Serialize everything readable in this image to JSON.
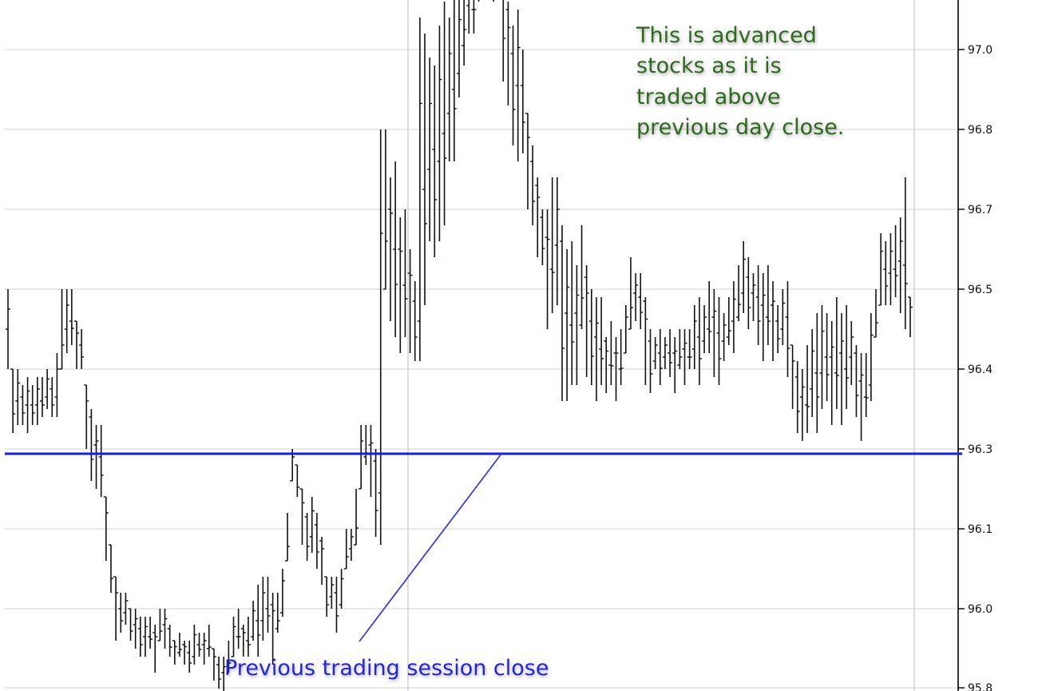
{
  "chart_data": {
    "type": "ohlc",
    "y_axis": {
      "position": "right",
      "ticks": [
        "97.0",
        "96.8",
        "96.7",
        "96.5",
        "96.4",
        "96.3",
        "96.1",
        "96.0",
        "95.8"
      ]
    },
    "grid": true,
    "vertical_markers": [
      "session-boundary",
      "chart-end"
    ],
    "reference_line": {
      "value": 96.3,
      "color": "#1a1aee"
    },
    "annotations": {
      "advanced": [
        "This is advanced",
        "stocks as it is",
        "traded above",
        "previous day close."
      ],
      "prev_close": "Previous trading session close"
    },
    "bars_low_high": [
      [
        96.4,
        96.5
      ],
      [
        96.32,
        96.4
      ],
      [
        96.33,
        96.4
      ],
      [
        96.33,
        96.38
      ],
      [
        96.32,
        96.39
      ],
      [
        96.33,
        96.38
      ],
      [
        96.33,
        96.39
      ],
      [
        96.34,
        96.39
      ],
      [
        96.35,
        96.4
      ],
      [
        96.34,
        96.39
      ],
      [
        96.34,
        96.42
      ],
      [
        96.4,
        96.5
      ],
      [
        96.42,
        96.5
      ],
      [
        96.43,
        96.5
      ],
      [
        96.4,
        96.46
      ],
      [
        96.4,
        96.45
      ],
      [
        96.3,
        96.38
      ],
      [
        96.26,
        96.35
      ],
      [
        96.25,
        96.33
      ],
      [
        96.24,
        96.33
      ],
      [
        96.16,
        96.24
      ],
      [
        96.12,
        96.18
      ],
      [
        96.06,
        96.14
      ],
      [
        96.07,
        96.12
      ],
      [
        96.08,
        96.12
      ],
      [
        96.06,
        96.1
      ],
      [
        96.05,
        96.1
      ],
      [
        96.04,
        96.09
      ],
      [
        96.04,
        96.09
      ],
      [
        96.05,
        96.09
      ],
      [
        96.02,
        96.08
      ],
      [
        96.06,
        96.1
      ],
      [
        96.05,
        96.1
      ],
      [
        96.04,
        96.08
      ],
      [
        96.03,
        96.06
      ],
      [
        96.04,
        96.07
      ],
      [
        96.03,
        96.06
      ],
      [
        96.02,
        96.06
      ],
      [
        96.03,
        96.08
      ],
      [
        96.04,
        96.07
      ],
      [
        96.03,
        96.07
      ],
      [
        96.04,
        96.08
      ],
      [
        96.01,
        96.05
      ],
      [
        96.0,
        96.04
      ],
      [
        95.99,
        96.04
      ],
      [
        96.02,
        96.06
      ],
      [
        96.04,
        96.09
      ],
      [
        96.05,
        96.1
      ],
      [
        96.04,
        96.08
      ],
      [
        96.04,
        96.09
      ],
      [
        96.06,
        96.11
      ],
      [
        96.04,
        96.13
      ],
      [
        96.06,
        96.14
      ],
      [
        96.07,
        96.14
      ],
      [
        96.03,
        96.12
      ],
      [
        96.07,
        96.12
      ],
      [
        96.09,
        96.15
      ],
      [
        96.16,
        96.22
      ],
      [
        96.26,
        96.3
      ],
      [
        96.24,
        96.28
      ],
      [
        96.18,
        96.25
      ],
      [
        96.16,
        96.22
      ],
      [
        96.17,
        96.24
      ],
      [
        96.15,
        96.22
      ],
      [
        96.13,
        96.19
      ],
      [
        96.09,
        96.14
      ],
      [
        96.1,
        96.14
      ],
      [
        96.07,
        96.14
      ],
      [
        96.1,
        96.15
      ],
      [
        96.15,
        96.2
      ],
      [
        96.16,
        96.2
      ],
      [
        96.18,
        96.25
      ],
      [
        96.25,
        96.33
      ],
      [
        96.28,
        96.33
      ],
      [
        96.24,
        96.33
      ],
      [
        96.19,
        96.3
      ],
      [
        96.18,
        96.7
      ],
      [
        96.5,
        96.7
      ],
      [
        96.46,
        96.64
      ],
      [
        96.44,
        96.66
      ],
      [
        96.42,
        96.59
      ],
      [
        96.44,
        96.6
      ],
      [
        96.42,
        96.55
      ],
      [
        96.41,
        96.51
      ],
      [
        96.41,
        96.84
      ],
      [
        96.48,
        96.82
      ],
      [
        96.56,
        96.79
      ],
      [
        96.54,
        96.78
      ],
      [
        96.56,
        96.83
      ],
      [
        96.58,
        96.86
      ],
      [
        96.66,
        96.84
      ],
      [
        96.66,
        96.88
      ],
      [
        96.74,
        96.87
      ],
      [
        96.78,
        96.93
      ],
      [
        96.82,
        96.88
      ],
      [
        96.82,
        96.92
      ],
      [
        96.86,
        97.02
      ],
      [
        96.9,
        97.04
      ],
      [
        96.91,
        97.05
      ],
      [
        96.86,
        97.05
      ],
      [
        96.88,
        97.04
      ],
      [
        96.76,
        96.94
      ],
      [
        96.73,
        96.86
      ],
      [
        96.68,
        96.83
      ],
      [
        96.66,
        96.85
      ],
      [
        96.67,
        96.8
      ],
      [
        96.6,
        96.72
      ],
      [
        96.58,
        96.68
      ],
      [
        96.54,
        96.64
      ],
      [
        96.53,
        96.6
      ],
      [
        96.45,
        96.6
      ],
      [
        96.47,
        96.64
      ],
      [
        96.48,
        96.64
      ],
      [
        96.36,
        96.58
      ],
      [
        96.36,
        96.55
      ],
      [
        96.38,
        96.56
      ],
      [
        96.38,
        96.53
      ],
      [
        96.45,
        96.58
      ],
      [
        96.39,
        96.53
      ],
      [
        96.38,
        96.5
      ],
      [
        96.36,
        96.49
      ],
      [
        96.38,
        96.49
      ],
      [
        96.37,
        96.44
      ],
      [
        96.38,
        96.46
      ],
      [
        96.36,
        96.44
      ],
      [
        96.38,
        96.45
      ],
      [
        96.42,
        96.48
      ],
      [
        96.45,
        96.54
      ],
      [
        96.46,
        96.52
      ],
      [
        96.45,
        96.52
      ],
      [
        96.38,
        96.49
      ],
      [
        96.37,
        96.45
      ],
      [
        96.4,
        96.44
      ],
      [
        96.38,
        96.45
      ],
      [
        96.4,
        96.44
      ],
      [
        96.39,
        96.45
      ],
      [
        96.37,
        96.44
      ],
      [
        96.4,
        96.45
      ],
      [
        96.38,
        96.45
      ],
      [
        96.4,
        96.45
      ],
      [
        96.4,
        96.48
      ],
      [
        96.38,
        96.49
      ],
      [
        96.42,
        96.48
      ],
      [
        96.42,
        96.51
      ],
      [
        96.39,
        96.5
      ],
      [
        96.38,
        96.49
      ],
      [
        96.41,
        96.47
      ],
      [
        96.43,
        96.49
      ],
      [
        96.42,
        96.51
      ],
      [
        96.46,
        96.53
      ],
      [
        96.47,
        96.56
      ],
      [
        96.45,
        96.54
      ],
      [
        96.46,
        96.52
      ],
      [
        96.43,
        96.53
      ],
      [
        96.41,
        96.52
      ],
      [
        96.43,
        96.53
      ],
      [
        96.41,
        96.51
      ],
      [
        96.42,
        96.48
      ],
      [
        96.43,
        96.5
      ],
      [
        96.39,
        96.51
      ],
      [
        96.35,
        96.43
      ],
      [
        96.32,
        96.41
      ],
      [
        96.31,
        96.4
      ],
      [
        96.32,
        96.43
      ],
      [
        96.34,
        96.45
      ],
      [
        96.32,
        96.47
      ],
      [
        96.35,
        96.48
      ],
      [
        96.36,
        96.47
      ],
      [
        96.33,
        96.46
      ],
      [
        96.35,
        96.49
      ],
      [
        96.33,
        96.47
      ],
      [
        96.35,
        96.48
      ],
      [
        96.38,
        96.46
      ],
      [
        96.34,
        96.43
      ],
      [
        96.31,
        96.42
      ],
      [
        96.34,
        96.42
      ],
      [
        96.36,
        96.47
      ],
      [
        96.44,
        96.5
      ],
      [
        96.48,
        96.57
      ],
      [
        96.48,
        96.56
      ],
      [
        96.48,
        96.57
      ],
      [
        96.49,
        96.58
      ],
      [
        96.47,
        96.59
      ],
      [
        96.45,
        96.64
      ],
      [
        96.44,
        96.49
      ]
    ]
  }
}
